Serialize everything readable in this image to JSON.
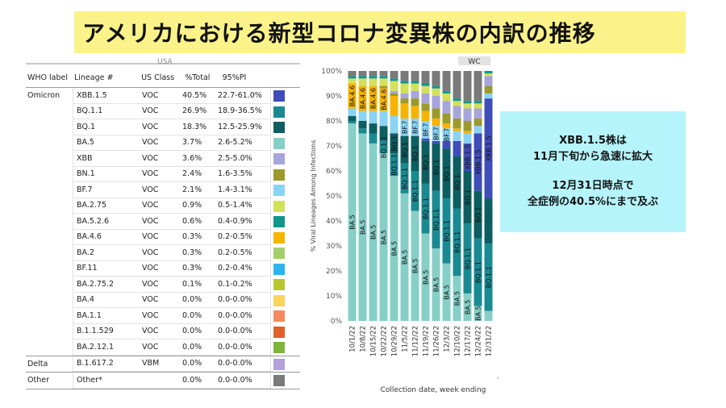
{
  "title": "アメリカにおける新型コロナ変異株の内訳の推移",
  "table": {
    "cut_header": "USA",
    "headers": {
      "who": "WHO label",
      "lineage": "Lineage #",
      "class": "US Class",
      "total": "%Total",
      "pi": "95%PI"
    },
    "rows": [
      {
        "who": "Omicron",
        "lineage": "XBB.1.5",
        "class": "VOC",
        "total": "40.5%",
        "pi": "22.7-61.0%",
        "color": "#3f4db8"
      },
      {
        "who": "",
        "lineage": "BQ.1.1",
        "class": "VOC",
        "total": "26.9%",
        "pi": "18.9-36.5%",
        "color": "#1a8a92"
      },
      {
        "who": "",
        "lineage": "BQ.1",
        "class": "VOC",
        "total": "18.3%",
        "pi": "12.5-25.9%",
        "color": "#0d5e60"
      },
      {
        "who": "",
        "lineage": "BA.5",
        "class": "VOC",
        "total": "3.7%",
        "pi": "2.6-5.2%",
        "color": "#86cfc7"
      },
      {
        "who": "",
        "lineage": "XBB",
        "class": "VOC",
        "total": "3.6%",
        "pi": "2.5-5.0%",
        "color": "#a6a6dc"
      },
      {
        "who": "",
        "lineage": "BN.1",
        "class": "VOC",
        "total": "2.4%",
        "pi": "1.6-3.5%",
        "color": "#9c9a2a"
      },
      {
        "who": "",
        "lineage": "BF.7",
        "class": "VOC",
        "total": "2.1%",
        "pi": "1.4-3.1%",
        "color": "#8ad3f3"
      },
      {
        "who": "",
        "lineage": "BA.2.75",
        "class": "VOC",
        "total": "0.9%",
        "pi": "0.5-1.4%",
        "color": "#d2e05a"
      },
      {
        "who": "",
        "lineage": "BA.5.2.6",
        "class": "VOC",
        "total": "0.6%",
        "pi": "0.4-0.9%",
        "color": "#10968a"
      },
      {
        "who": "",
        "lineage": "BA.4.6",
        "class": "VOC",
        "total": "0.3%",
        "pi": "0.2-0.5%",
        "color": "#f6b400"
      },
      {
        "who": "",
        "lineage": "BA.2",
        "class": "VOC",
        "total": "0.3%",
        "pi": "0.2-0.5%",
        "color": "#a3cf6a"
      },
      {
        "who": "",
        "lineage": "BF.11",
        "class": "VOC",
        "total": "0.3%",
        "pi": "0.2-0.4%",
        "color": "#2eb4ec"
      },
      {
        "who": "",
        "lineage": "BA.2.75.2",
        "class": "VOC",
        "total": "0.1%",
        "pi": "0.1-0.2%",
        "color": "#b9c72f"
      },
      {
        "who": "",
        "lineage": "BA.4",
        "class": "VOC",
        "total": "0.0%",
        "pi": "0.0-0.0%",
        "color": "#f7d45a"
      },
      {
        "who": "",
        "lineage": "BA.1.1",
        "class": "VOC",
        "total": "0.0%",
        "pi": "0.0-0.0%",
        "color": "#f58a5e"
      },
      {
        "who": "",
        "lineage": "B.1.1.529",
        "class": "VOC",
        "total": "0.0%",
        "pi": "0.0-0.0%",
        "color": "#e2602a"
      },
      {
        "who": "",
        "lineage": "BA.2.12.1",
        "class": "VOC",
        "total": "0.0%",
        "pi": "0.0-0.0%",
        "color": "#7fb53a"
      },
      {
        "who": "Delta",
        "lineage": "B.1.617.2",
        "class": "VBM",
        "total": "0.0%",
        "pi": "0.0-0.0%",
        "color": "#b3a0dd"
      },
      {
        "who": "Other",
        "lineage": "Other*",
        "class": "",
        "total": "0.0%",
        "pi": "0.0-0.0%",
        "color": "#7a7a7a"
      }
    ]
  },
  "chart_data": {
    "type": "bar",
    "stacked": true,
    "ylabel": "% Viral Lineages Among Infections",
    "xlabel": "Collection date, week ending",
    "ylim": [
      0,
      100
    ],
    "yticks": [
      "0%",
      "10%",
      "20%",
      "30%",
      "40%",
      "50%",
      "60%",
      "70%",
      "80%",
      "90%",
      "100%"
    ],
    "top_tag": "WC",
    "categories": [
      "10/1/22",
      "10/8/22",
      "10/15/22",
      "10/22/22",
      "10/29/22",
      "11/5/22",
      "11/12/22",
      "11/19/22",
      "11/26/22",
      "12/3/22",
      "12/10/22",
      "12/17/22",
      "12/24/22",
      "12/31/22"
    ],
    "series": [
      {
        "name": "BA.5",
        "color": "#86cfc7",
        "values": [
          79,
          75,
          71,
          67,
          58,
          51,
          44,
          35,
          29,
          23,
          18,
          11,
          6,
          4
        ]
      },
      {
        "name": "BQ.1.1",
        "color": "#1a8a92",
        "values": [
          1,
          2,
          4,
          5,
          9,
          12,
          16,
          20,
          23,
          26,
          27,
          28,
          27,
          27
        ]
      },
      {
        "name": "BQ.1",
        "color": "#0d5e60",
        "values": [
          2,
          3,
          4,
          6,
          8,
          11,
          14,
          17,
          19,
          20,
          21,
          21,
          19,
          18
        ]
      },
      {
        "name": "XBB.1.5",
        "color": "#3f4db8",
        "values": [
          0,
          0,
          0,
          0,
          0,
          0,
          0,
          1,
          1,
          3,
          6,
          11,
          23,
          40
        ]
      },
      {
        "name": "BF.7",
        "color": "#8ad3f3",
        "values": [
          3,
          4,
          5,
          6,
          7,
          7,
          7,
          7,
          6,
          5,
          4,
          4,
          3,
          2
        ]
      },
      {
        "name": "BA.4.6",
        "color": "#f6b400",
        "values": [
          10,
          10,
          10,
          9,
          8,
          6,
          5,
          4,
          3,
          2,
          1,
          1,
          0,
          0
        ]
      },
      {
        "name": "BN.1",
        "color": "#9c9a2a",
        "values": [
          0,
          0,
          0,
          1,
          1,
          2,
          3,
          3,
          4,
          4,
          4,
          4,
          3,
          3
        ]
      },
      {
        "name": "XBB",
        "color": "#a6a6dc",
        "values": [
          0,
          0,
          0,
          0,
          1,
          2,
          3,
          4,
          5,
          5,
          5,
          5,
          4,
          4
        ]
      },
      {
        "name": "BA.2.75",
        "color": "#d2e05a",
        "values": [
          2,
          3,
          3,
          3,
          4,
          4,
          3,
          3,
          3,
          3,
          2,
          2,
          2,
          1
        ]
      },
      {
        "name": "BA.5.2.6",
        "color": "#10968a",
        "values": [
          1,
          1,
          1,
          1,
          1,
          1,
          1,
          1,
          1,
          1,
          1,
          1,
          1,
          1
        ]
      },
      {
        "name": "Other",
        "color": "#7a7a7a",
        "values": [
          2,
          2,
          2,
          2,
          3,
          4,
          4,
          5,
          6,
          8,
          11,
          12,
          12,
          0
        ]
      }
    ],
    "bar_labels": [
      {
        "series": "BA.5",
        "from": 0,
        "to": 12,
        "text": "BA.5"
      },
      {
        "series": "BQ.1.1",
        "from": 3,
        "to": 13,
        "text": "BQ.1.1"
      },
      {
        "series": "BQ.1",
        "from": 4,
        "to": 12,
        "text": "BQ.1"
      },
      {
        "series": "BF.7",
        "from": 5,
        "to": 9,
        "text": "BF.7"
      },
      {
        "series": "BA.4.6",
        "from": 0,
        "to": 3,
        "text": "BA.4.6"
      },
      {
        "series": "XBB.1.5",
        "from": 11,
        "to": 13,
        "text": "XBB.1.5"
      }
    ]
  },
  "callout": {
    "line1": "XBB.1.5株は",
    "line2": "11月下旬から急速に拡大",
    "line3": "12月31日時点で",
    "line4": "全症例の40.5%にまで及ぶ"
  }
}
